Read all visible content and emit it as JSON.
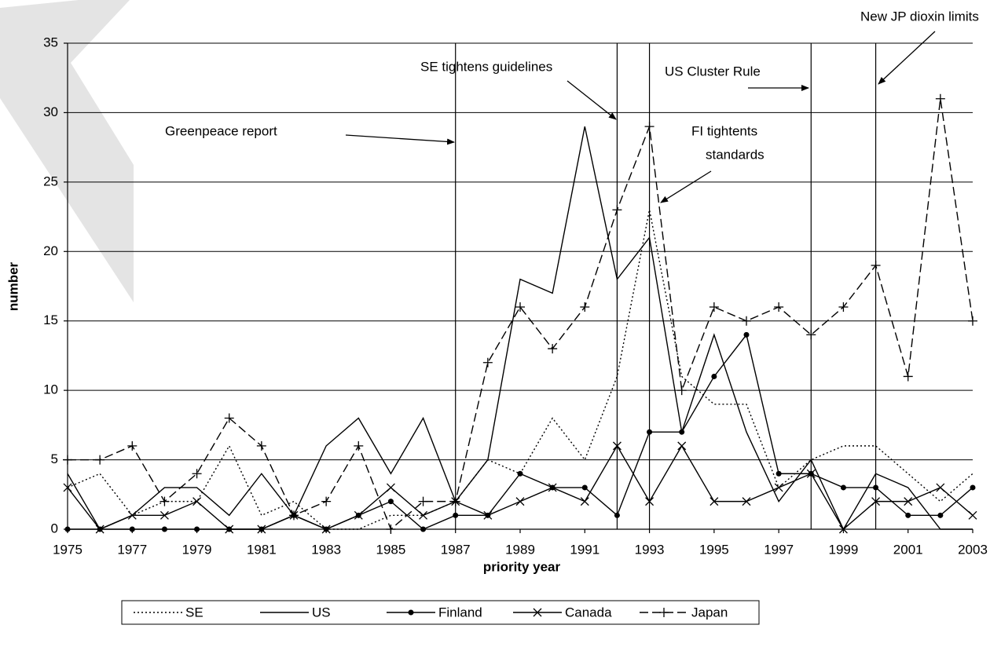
{
  "chart_data": {
    "type": "line",
    "x_label": "priority year",
    "y_label": "number",
    "x": [
      1975,
      1976,
      1977,
      1978,
      1979,
      1980,
      1981,
      1982,
      1983,
      1984,
      1985,
      1986,
      1987,
      1988,
      1989,
      1990,
      1991,
      1992,
      1993,
      1994,
      1995,
      1996,
      1997,
      1998,
      1999,
      2000,
      2001,
      2002,
      2003
    ],
    "xlim": [
      1975,
      2003
    ],
    "xticks": [
      1975,
      1977,
      1979,
      1981,
      1983,
      1985,
      1987,
      1989,
      1991,
      1993,
      1995,
      1997,
      1999,
      2001,
      2003
    ],
    "ylim": [
      0,
      35
    ],
    "yticks": [
      0,
      5,
      10,
      15,
      20,
      25,
      30,
      35
    ],
    "grid": true,
    "event_lines": [
      1987,
      1992,
      1993,
      1998,
      2000
    ],
    "annotations": [
      "Greenpeace report",
      "SE tightens guidelines",
      [
        "FI tightents",
        "standards"
      ],
      "US Cluster Rule",
      "New JP dioxin limits"
    ],
    "series": [
      {
        "name": "SE",
        "color": "#000000",
        "linestyle": "dotted",
        "marker": "none",
        "values": [
          3,
          4,
          1,
          2,
          2,
          6,
          1,
          2,
          0,
          0,
          1,
          1,
          2,
          5,
          4,
          8,
          5,
          11,
          23,
          11,
          9,
          9,
          3,
          5,
          6,
          6,
          4,
          2,
          4
        ]
      },
      {
        "name": "US",
        "color": "#000000",
        "linestyle": "solid",
        "marker": "none",
        "values": [
          4,
          0,
          1,
          3,
          3,
          1,
          4,
          1,
          6,
          8,
          4,
          8,
          2,
          5,
          18,
          17,
          29,
          18,
          21,
          7,
          14,
          7,
          2,
          5,
          0,
          4,
          3,
          0,
          0
        ]
      },
      {
        "name": "Finland",
        "color": "#000000",
        "linestyle": "solid",
        "marker": "circle",
        "values": [
          0,
          0,
          0,
          0,
          0,
          0,
          0,
          1,
          0,
          1,
          2,
          0,
          1,
          1,
          4,
          3,
          3,
          1,
          7,
          7,
          11,
          14,
          4,
          4,
          3,
          3,
          1,
          1,
          3
        ]
      },
      {
        "name": "Canada",
        "color": "#000000",
        "linestyle": "solid",
        "marker": "x",
        "values": [
          3,
          0,
          1,
          1,
          2,
          0,
          0,
          1,
          0,
          1,
          3,
          1,
          2,
          1,
          2,
          3,
          2,
          6,
          2,
          6,
          2,
          2,
          3,
          4,
          0,
          2,
          2,
          3,
          1
        ]
      },
      {
        "name": "Japan",
        "color": "#000000",
        "linestyle": "dashed",
        "marker": "plus",
        "values": [
          5,
          5,
          6,
          2,
          4,
          8,
          6,
          1,
          2,
          6,
          0,
          2,
          2,
          12,
          16,
          13,
          16,
          23,
          29,
          10,
          16,
          15,
          16,
          14,
          16,
          19,
          11,
          31,
          15
        ]
      }
    ]
  }
}
